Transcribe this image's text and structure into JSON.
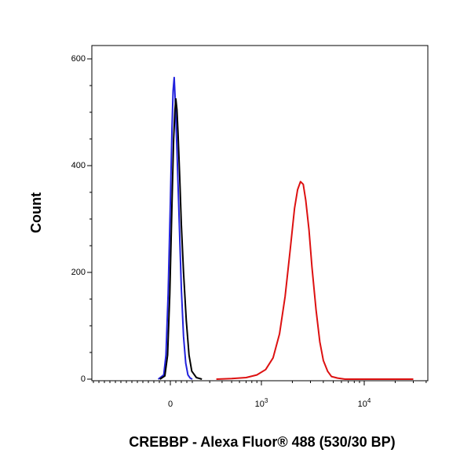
{
  "chart_data": {
    "type": "line",
    "title": "",
    "xlabel": "CREBBP - Alexa Fluor® 488 (530/30 BP)",
    "ylabel": "Count",
    "x_scale": "biexponential",
    "x_ticks": [
      {
        "value": 0,
        "base": "0",
        "exp": ""
      },
      {
        "value": 1000,
        "base": "10",
        "exp": "3"
      },
      {
        "value": 10000,
        "base": "10",
        "exp": "4"
      }
    ],
    "y_ticks": [
      {
        "value": 0,
        "label": "0"
      },
      {
        "value": 200,
        "label": "200"
      },
      {
        "value": 400,
        "label": "400"
      },
      {
        "value": 600,
        "label": "600"
      }
    ],
    "ylim": [
      0,
      600
    ],
    "grid": false,
    "legend": "none",
    "series": [
      {
        "color": "#2222dd",
        "points": [
          [
            -110,
            0
          ],
          [
            -60,
            8
          ],
          [
            -40,
            45
          ],
          [
            -20,
            160
          ],
          [
            0,
            330
          ],
          [
            15,
            470
          ],
          [
            25,
            540
          ],
          [
            35,
            565
          ],
          [
            45,
            520
          ],
          [
            60,
            430
          ],
          [
            80,
            300
          ],
          [
            100,
            170
          ],
          [
            120,
            80
          ],
          [
            140,
            30
          ],
          [
            160,
            8
          ],
          [
            180,
            2
          ],
          [
            200,
            0
          ]
        ]
      },
      {
        "color": "#000000",
        "points": [
          [
            -95,
            0
          ],
          [
            -50,
            6
          ],
          [
            -25,
            45
          ],
          [
            -5,
            160
          ],
          [
            15,
            330
          ],
          [
            30,
            450
          ],
          [
            42,
            505
          ],
          [
            50,
            525
          ],
          [
            60,
            505
          ],
          [
            70,
            460
          ],
          [
            85,
            380
          ],
          [
            100,
            290
          ],
          [
            120,
            200
          ],
          [
            145,
            110
          ],
          [
            170,
            45
          ],
          [
            195,
            15
          ],
          [
            220,
            3
          ],
          [
            250,
            0
          ]
        ]
      },
      {
        "color": "#dd1111",
        "points": [
          [
            350,
            0
          ],
          [
            500,
            1
          ],
          [
            700,
            3
          ],
          [
            900,
            8
          ],
          [
            1100,
            18
          ],
          [
            1300,
            40
          ],
          [
            1500,
            85
          ],
          [
            1700,
            155
          ],
          [
            1900,
            240
          ],
          [
            2100,
            320
          ],
          [
            2250,
            355
          ],
          [
            2400,
            370
          ],
          [
            2550,
            365
          ],
          [
            2700,
            335
          ],
          [
            2900,
            280
          ],
          [
            3100,
            210
          ],
          [
            3400,
            130
          ],
          [
            3700,
            70
          ],
          [
            4000,
            35
          ],
          [
            4400,
            15
          ],
          [
            4800,
            5
          ],
          [
            5500,
            2
          ],
          [
            6500,
            0
          ],
          [
            10000,
            0
          ],
          [
            30000,
            0
          ]
        ]
      }
    ]
  }
}
